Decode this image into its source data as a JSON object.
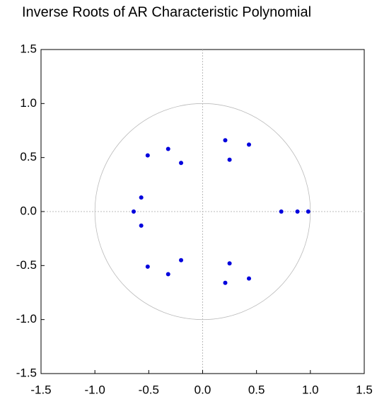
{
  "chart_data": {
    "type": "scatter",
    "title": "Inverse Roots of AR Characteristic Polynomial",
    "x": [
      0.21,
      0.43,
      0.25,
      -0.32,
      -0.51,
      -0.2,
      -0.57,
      -0.64,
      -0.57,
      0.73,
      0.88,
      0.98,
      -0.2,
      -0.51,
      -0.32,
      0.25,
      0.43,
      0.21
    ],
    "y": [
      0.66,
      0.62,
      0.48,
      0.58,
      0.52,
      0.45,
      0.13,
      0.0,
      -0.13,
      0.0,
      0.0,
      0.0,
      -0.45,
      -0.51,
      -0.58,
      -0.48,
      -0.62,
      -0.66
    ],
    "color": "#0000dd",
    "xlim": [
      -1.5,
      1.5
    ],
    "ylim": [
      -1.5,
      1.5
    ],
    "xticks": [
      -1.5,
      {
        "value": -1.0,
        "label": "-1.0"
      },
      -0.5,
      {
        "value": 0.0,
        "label": "0.0"
      },
      0.5,
      {
        "value": 1.0,
        "label": "1.0"
      },
      1.5
    ],
    "yticks": [
      -1.5,
      {
        "value": -1.0,
        "label": "-1.0"
      },
      -0.5,
      {
        "value": 0.0,
        "label": "0.0"
      },
      0.5,
      {
        "value": 1.0,
        "label": "1.0"
      },
      1.5
    ],
    "unit_circle": true,
    "zero_lines": true
  }
}
